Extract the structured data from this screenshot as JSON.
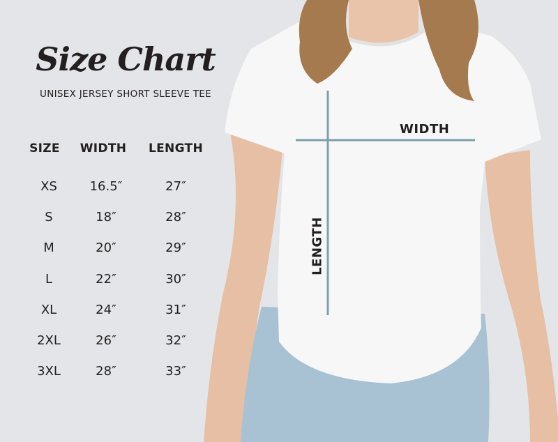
{
  "title": "Size Chart",
  "subtitle": "UNISEX JERSEY SHORT SLEEVE TEE",
  "table": {
    "headers": [
      "SIZE",
      "WIDTH",
      "LENGTH"
    ],
    "rows": [
      [
        "XS",
        "16.5″",
        "27″"
      ],
      [
        "S",
        "18″",
        "28″"
      ],
      [
        "M",
        "20″",
        "29″"
      ],
      [
        "L",
        "22″",
        "30″"
      ],
      [
        "XL",
        "24″",
        "31″"
      ],
      [
        "2XL",
        "26″",
        "32″"
      ],
      [
        "3XL",
        "28″",
        "33″"
      ]
    ]
  },
  "measure_labels": {
    "width": "WIDTH",
    "length": "LENGTH"
  },
  "colors": {
    "background": "#e3e5e8",
    "measure_line": "#7d9fad",
    "text": "#231f20",
    "shirt": "#f7f7f7",
    "denim": "#a9c2d3"
  }
}
